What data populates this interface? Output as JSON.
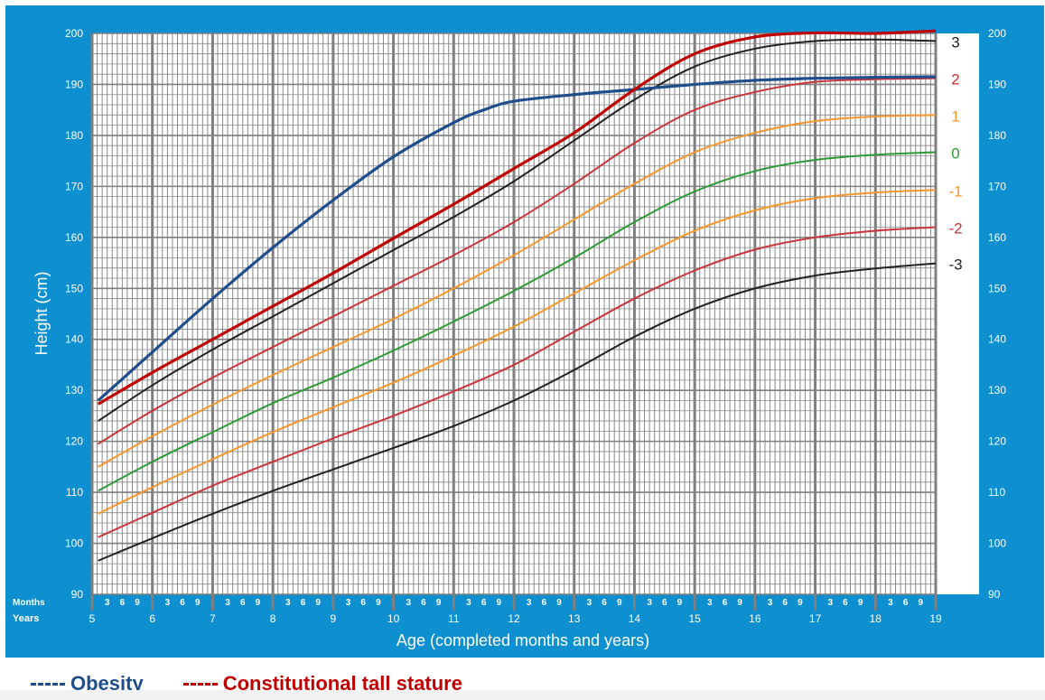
{
  "colors": {
    "background": "#0e8fd0",
    "plot": "#ffffff",
    "grid_major": "#7f7f7f",
    "grid_minor": "#888888",
    "axis_text": "#ffffff",
    "obesity": "#1f4e8c",
    "tall_stature": "#c00000",
    "sd3": "#222222",
    "sd2": "#c9353a",
    "sd1": "#f7962a",
    "sd0": "#2e9a36"
  },
  "chart_data": {
    "type": "line",
    "title": "",
    "xlabel": "Age (completed months and years)",
    "ylabel": "Height (cm)",
    "xlim": [
      5,
      19
    ],
    "ylim": [
      90,
      200
    ],
    "grid": true,
    "y_ticks": [
      "90",
      "100",
      "110",
      "120",
      "130",
      "140",
      "150",
      "160",
      "170",
      "180",
      "190",
      "200"
    ],
    "x_ticks": [
      "5",
      "6",
      "7",
      "8",
      "9",
      "10",
      "11",
      "12",
      "13",
      "14",
      "15",
      "16",
      "17",
      "18",
      "19"
    ],
    "month_ticks": [
      "3",
      "6",
      "9"
    ],
    "row_labels": {
      "months": "Months",
      "years": "Years"
    },
    "series": [
      {
        "name": "3",
        "color": "#222222",
        "x": [
          5.1,
          6,
          7,
          8,
          9,
          10,
          11,
          12,
          13,
          14,
          15,
          16,
          17,
          18,
          19
        ],
        "y": [
          124,
          131,
          138,
          144.5,
          151,
          157.5,
          164,
          171,
          179,
          187,
          193.5,
          197,
          198.5,
          198.8,
          198.5
        ]
      },
      {
        "name": "2",
        "color": "#c9353a",
        "x": [
          5.1,
          6,
          7,
          8,
          9,
          10,
          11,
          12,
          13,
          14,
          15,
          16,
          17,
          18,
          19
        ],
        "y": [
          119.5,
          126,
          132.5,
          138.5,
          144.5,
          150.5,
          156.5,
          163,
          170.5,
          178.5,
          185,
          188.5,
          190.5,
          191,
          191.2
        ]
      },
      {
        "name": "1",
        "color": "#f7962a",
        "x": [
          5.1,
          6,
          7,
          8,
          9,
          10,
          11,
          12,
          13,
          14,
          15,
          16,
          17,
          18,
          19
        ],
        "y": [
          115,
          121,
          127.2,
          133,
          138.5,
          144,
          150,
          156.5,
          163.5,
          170.5,
          176.7,
          180.5,
          182.8,
          183.7,
          184
        ]
      },
      {
        "name": "0",
        "color": "#2e9a36",
        "x": [
          5.1,
          6,
          7,
          8,
          9,
          10,
          11,
          12,
          13,
          14,
          15,
          16,
          17,
          18,
          19
        ],
        "y": [
          110.3,
          116,
          121.8,
          127.5,
          132.5,
          137.8,
          143.5,
          149.5,
          156,
          163,
          169,
          173,
          175.2,
          176.2,
          176.7
        ]
      },
      {
        "name": "-1",
        "color": "#f7962a",
        "x": [
          5.1,
          6,
          7,
          8,
          9,
          10,
          11,
          12,
          13,
          14,
          15,
          16,
          17,
          18,
          19
        ],
        "y": [
          105.8,
          111,
          116.5,
          121.8,
          126.7,
          131.5,
          136.8,
          142.5,
          149,
          155.5,
          161.3,
          165.3,
          167.7,
          168.8,
          169.3
        ]
      },
      {
        "name": "-2",
        "color": "#c9353a",
        "x": [
          5.1,
          6,
          7,
          8,
          9,
          10,
          11,
          12,
          13,
          14,
          15,
          16,
          17,
          18,
          19
        ],
        "y": [
          101.2,
          106,
          111.3,
          116,
          120.6,
          125,
          129.8,
          135,
          141.5,
          148,
          153.5,
          157.6,
          160,
          161.3,
          162
        ]
      },
      {
        "name": "-3",
        "color": "#222222",
        "x": [
          5.1,
          6,
          7,
          8,
          9,
          10,
          11,
          12,
          13,
          14,
          15,
          16,
          17,
          18,
          19
        ],
        "y": [
          96.6,
          101,
          105.8,
          110.3,
          114.5,
          118.7,
          123,
          128,
          134,
          140.5,
          146,
          150,
          152.5,
          153.9,
          154.9
        ]
      },
      {
        "name": "Obesity",
        "color": "#1f4e8c",
        "x": [
          5.1,
          6,
          7,
          8,
          9,
          10,
          11,
          11.5,
          12,
          13,
          14,
          15,
          16,
          17,
          18,
          19
        ],
        "y": [
          128,
          137.5,
          148,
          158,
          167.3,
          175.8,
          182.5,
          185,
          186.7,
          188,
          189,
          190,
          190.8,
          191.2,
          191.4,
          191.5
        ]
      },
      {
        "name": "Constitutional tall stature",
        "color": "#c00000",
        "x": [
          5.1,
          6,
          7,
          8,
          9,
          10,
          11,
          12,
          13,
          14,
          15,
          16,
          17,
          18,
          19
        ],
        "y": [
          127.3,
          133.5,
          140,
          146.5,
          153,
          159.8,
          166.5,
          173.5,
          180.5,
          189,
          196,
          199.3,
          200.1,
          200,
          200.5
        ]
      }
    ]
  },
  "legend": [
    {
      "label": "Obesity",
      "color": "#1f4e8c"
    },
    {
      "label": "Constitutional tall stature",
      "color": "#c00000"
    }
  ]
}
